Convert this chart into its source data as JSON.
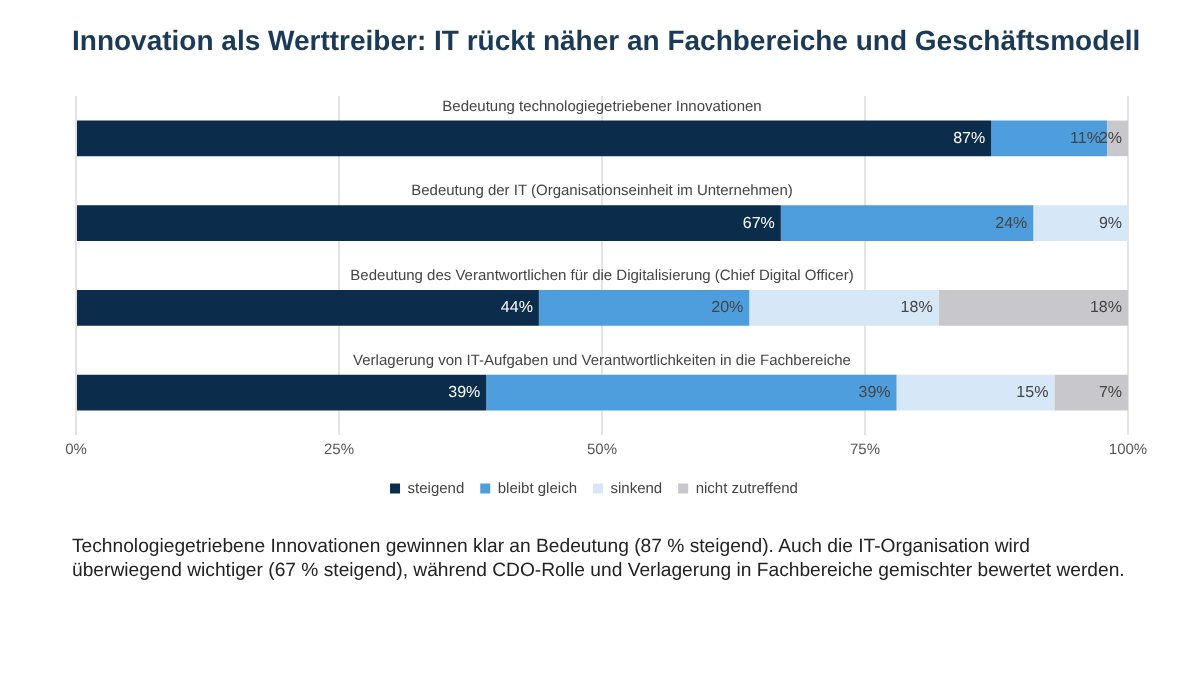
{
  "chart_data": {
    "type": "bar",
    "orientation": "horizontal",
    "stacked": true,
    "title": "Innovation als Werttreiber: IT rückt näher an Fachbereiche und Geschäftsmodell",
    "categories": [
      "Bedeutung technologiegetriebener Innovationen",
      "Bedeutung der IT (Organisationseinheit im Unternehmen)",
      "Bedeutung des Verantwortlichen für die Digitalisierung (Chief Digital Officer)",
      "Verlagerung von IT-Aufgaben und Verantwortlichkeiten in die Fachbereiche"
    ],
    "series": [
      {
        "name": "steigend",
        "color": "#0b2c4a",
        "values": [
          87,
          67,
          44,
          39
        ],
        "value_labels": [
          "87%",
          "67%",
          "44%",
          "39%"
        ]
      },
      {
        "name": "bleibt gleich",
        "color": "#4e9ddc",
        "values": [
          11,
          24,
          20,
          39
        ],
        "value_labels": [
          "11%",
          "24%",
          "20%",
          "39%"
        ]
      },
      {
        "name": "sinkend",
        "color": "#d6e8f8",
        "values": [
          0,
          9,
          18,
          15
        ],
        "value_labels": [
          null,
          "9%",
          "18%",
          "15%"
        ]
      },
      {
        "name": "nicht zutreffend",
        "color": "#c8c8cc",
        "values": [
          2,
          0,
          18,
          7
        ],
        "value_labels": [
          "2%",
          null,
          "18%",
          "7%"
        ]
      }
    ],
    "xlim": [
      0,
      100
    ],
    "xticks": [
      {
        "value": 0,
        "label": "0%"
      },
      {
        "value": 25,
        "label": "25%"
      },
      {
        "value": 50,
        "label": "50%"
      },
      {
        "value": 75,
        "label": "75%"
      },
      {
        "value": 100,
        "label": "100%"
      }
    ],
    "grid": "x",
    "legend": "bottom",
    "tick_labels": "x",
    "annotations": [
      "Technologiegetriebene Innovationen gewinnen klar an Bedeutung (87 % steigend). Auch die IT-Organisation wird überwiegend wichtiger (67 % steigend), während CDO-Rolle und Verlagerung in Fachbereiche gemischter bewertet werden."
    ]
  }
}
